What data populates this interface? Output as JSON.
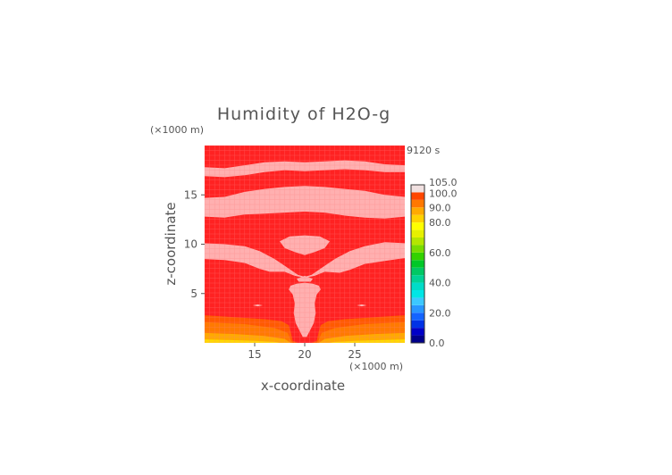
{
  "chart_data": {
    "type": "heatmap",
    "title": "Humidity of H2O-g",
    "time_label": "9120 s",
    "xlabel": "x-coordinate",
    "ylabel": "z-coordinate",
    "x_unit": "(×1000 m)",
    "y_unit": "(×1000 m)",
    "xlim": [
      10,
      30
    ],
    "ylim": [
      0,
      20
    ],
    "x_ticks": [
      {
        "value": 15,
        "label": "15"
      },
      {
        "value": 20,
        "label": "20"
      },
      {
        "value": 25,
        "label": "25"
      }
    ],
    "y_ticks": [
      {
        "value": 5,
        "label": "5"
      },
      {
        "value": 10,
        "label": "10"
      },
      {
        "value": 15,
        "label": "15"
      }
    ],
    "colorbar": {
      "levels": [
        0,
        5,
        10,
        15,
        20,
        25,
        30,
        35,
        40,
        45,
        50,
        55,
        60,
        65,
        70,
        75,
        80,
        85,
        90,
        95,
        100,
        105
      ],
      "colors": [
        "#00008b",
        "#0000c8",
        "#0032e6",
        "#1464ff",
        "#2896ff",
        "#3cc8ff",
        "#00e6e6",
        "#00dcc8",
        "#00d296",
        "#00c864",
        "#00c828",
        "#32d200",
        "#78dc00",
        "#b4e600",
        "#e6f000",
        "#ffff00",
        "#ffd200",
        "#ffaa00",
        "#ff7800",
        "#ff4600",
        "#f0e0e0"
      ],
      "labels": [
        {
          "value": 0,
          "label": "0.0"
        },
        {
          "value": 20,
          "label": "20.0"
        },
        {
          "value": 40,
          "label": "40.0"
        },
        {
          "value": 60,
          "label": "60.0"
        },
        {
          "value": 80,
          "label": "80.0"
        },
        {
          "value": 90,
          "label": "90.0"
        },
        {
          "value": 100,
          "label": "100.0"
        },
        {
          "value": 105,
          "label": "105.0"
        }
      ]
    },
    "field_colors": {
      "saturated": "#ff2222",
      "supersaturated": "#ffb0b0",
      "level_95": "#ff5a00",
      "level_90": "#ff7a00",
      "level_85": "#ffaa00",
      "level_80": "#ffdc00",
      "grid": "#ff8080"
    },
    "regions": [
      {
        "kind": "supersaturated",
        "points": [
          [
            10,
            17.8
          ],
          [
            12,
            17.7
          ],
          [
            14,
            18
          ],
          [
            16,
            18.3
          ],
          [
            18,
            18.4
          ],
          [
            20,
            18.3
          ],
          [
            22,
            18.4
          ],
          [
            24,
            18.5
          ],
          [
            26,
            18.4
          ],
          [
            28,
            18.1
          ],
          [
            30,
            18
          ],
          [
            30,
            17.3
          ],
          [
            28,
            17.3
          ],
          [
            26,
            17.5
          ],
          [
            24,
            17.6
          ],
          [
            22,
            17.5
          ],
          [
            20,
            17.4
          ],
          [
            18,
            17.5
          ],
          [
            16,
            17.3
          ],
          [
            14,
            17
          ],
          [
            12,
            16.8
          ],
          [
            10,
            16.9
          ]
        ]
      },
      {
        "kind": "supersaturated",
        "points": [
          [
            10,
            14.7
          ],
          [
            12,
            14.8
          ],
          [
            14,
            15.3
          ],
          [
            16,
            15.6
          ],
          [
            18,
            15.8
          ],
          [
            20,
            15.9
          ],
          [
            22,
            15.8
          ],
          [
            24,
            15.6
          ],
          [
            26,
            15.4
          ],
          [
            28,
            15
          ],
          [
            30,
            14.8
          ],
          [
            30,
            12.8
          ],
          [
            28,
            12.6
          ],
          [
            26,
            12.7
          ],
          [
            24,
            12.9
          ],
          [
            22,
            13.2
          ],
          [
            20,
            13.3
          ],
          [
            18,
            13.2
          ],
          [
            16,
            13.1
          ],
          [
            14,
            13
          ],
          [
            12,
            12.7
          ],
          [
            10,
            12.8
          ]
        ]
      },
      {
        "kind": "supersaturated",
        "points": [
          [
            17.5,
            10.3
          ],
          [
            18.5,
            10.8
          ],
          [
            20,
            10.9
          ],
          [
            21.5,
            10.8
          ],
          [
            22.5,
            10.3
          ],
          [
            22,
            9.6
          ],
          [
            21,
            9.2
          ],
          [
            20,
            8.9
          ],
          [
            19,
            9.2
          ],
          [
            18,
            9.6
          ]
        ]
      },
      {
        "kind": "supersaturated",
        "points": [
          [
            10,
            10.1
          ],
          [
            12,
            10
          ],
          [
            14,
            9.8
          ],
          [
            15.5,
            9.3
          ],
          [
            17,
            8.5
          ],
          [
            18.3,
            7.6
          ],
          [
            19.3,
            6.9
          ],
          [
            20,
            6.7
          ],
          [
            20.7,
            6.9
          ],
          [
            21.7,
            7.6
          ],
          [
            23,
            8.5
          ],
          [
            24.5,
            9.3
          ],
          [
            26,
            9.8
          ],
          [
            28,
            10.2
          ],
          [
            30,
            10.1
          ],
          [
            30,
            8.6
          ],
          [
            28,
            8.3
          ],
          [
            26,
            8
          ],
          [
            24.5,
            7.4
          ],
          [
            23.5,
            7.1
          ],
          [
            22,
            7.2
          ],
          [
            21,
            6.8
          ],
          [
            20,
            6.6
          ],
          [
            19,
            6.8
          ],
          [
            18,
            7.2
          ],
          [
            16.5,
            7.2
          ],
          [
            15.5,
            7.5
          ],
          [
            14,
            8.1
          ],
          [
            12,
            8.4
          ],
          [
            10,
            8.5
          ]
        ]
      },
      {
        "kind": "supersaturated",
        "points": [
          [
            19.2,
            6.5
          ],
          [
            20,
            6.8
          ],
          [
            20.8,
            6.5
          ],
          [
            20.6,
            6.2
          ],
          [
            19.4,
            6.2
          ]
        ]
      },
      {
        "kind": "supersaturated",
        "points": [
          [
            18.6,
            5.8
          ],
          [
            19.2,
            6
          ],
          [
            20,
            6.1
          ],
          [
            20.8,
            6
          ],
          [
            21.4,
            5.8
          ],
          [
            21.6,
            5.4
          ],
          [
            21.2,
            4.9
          ],
          [
            21,
            4
          ],
          [
            21.1,
            3
          ],
          [
            20.9,
            2
          ],
          [
            20.5,
            1.2
          ],
          [
            20.2,
            0.6
          ],
          [
            19.8,
            0.6
          ],
          [
            19.5,
            1.2
          ],
          [
            19.1,
            2
          ],
          [
            18.9,
            3
          ],
          [
            19,
            4
          ],
          [
            18.8,
            4.9
          ],
          [
            18.4,
            5.4
          ]
        ]
      },
      {
        "kind": "supersaturated",
        "points": [
          [
            14.8,
            3.8
          ],
          [
            15.3,
            3.9
          ],
          [
            15.8,
            3.8
          ],
          [
            15.3,
            3.7
          ]
        ]
      },
      {
        "kind": "supersaturated",
        "points": [
          [
            25.2,
            3.8
          ],
          [
            25.7,
            3.9
          ],
          [
            26.2,
            3.8
          ],
          [
            25.7,
            3.7
          ]
        ]
      },
      {
        "kind": "level_95",
        "points": [
          [
            10,
            2.8
          ],
          [
            13,
            2.6
          ],
          [
            16,
            2.4
          ],
          [
            17.7,
            2.2
          ],
          [
            18.4,
            1.8
          ],
          [
            18.6,
            1.1
          ],
          [
            18.8,
            0.2
          ],
          [
            19.3,
            0
          ],
          [
            20.7,
            0
          ],
          [
            21.2,
            0.2
          ],
          [
            21.4,
            1.1
          ],
          [
            21.6,
            1.8
          ],
          [
            22.3,
            2.2
          ],
          [
            24,
            2.4
          ],
          [
            27,
            2.6
          ],
          [
            30,
            2.8
          ],
          [
            30,
            0
          ],
          [
            10,
            0
          ]
        ]
      },
      {
        "kind": "level_90",
        "points": [
          [
            10,
            2.1
          ],
          [
            14,
            1.9
          ],
          [
            17,
            1.5
          ],
          [
            18.3,
            1
          ],
          [
            18.6,
            0.3
          ],
          [
            18.8,
            0
          ],
          [
            21.2,
            0
          ],
          [
            21.4,
            0.3
          ],
          [
            21.7,
            1
          ],
          [
            23,
            1.5
          ],
          [
            26,
            1.9
          ],
          [
            30,
            2.1
          ],
          [
            30,
            0
          ],
          [
            10,
            0
          ]
        ]
      },
      {
        "kind": "level_85",
        "points": [
          [
            10,
            1
          ],
          [
            13,
            0.9
          ],
          [
            16,
            0.7
          ],
          [
            18,
            0.4
          ],
          [
            18.6,
            0
          ],
          [
            21.4,
            0
          ],
          [
            22,
            0.4
          ],
          [
            24,
            0.7
          ],
          [
            27,
            0.9
          ],
          [
            30,
            1
          ],
          [
            30,
            0
          ],
          [
            10,
            0
          ]
        ]
      },
      {
        "kind": "level_80",
        "points": [
          [
            10,
            0.35
          ],
          [
            12,
            0.3
          ],
          [
            15,
            0.2
          ],
          [
            17,
            0.1
          ],
          [
            17.5,
            0
          ],
          [
            22.5,
            0
          ],
          [
            23,
            0.1
          ],
          [
            25,
            0.2
          ],
          [
            28,
            0.3
          ],
          [
            30,
            0.35
          ],
          [
            30,
            0
          ],
          [
            10,
            0
          ]
        ]
      }
    ]
  }
}
